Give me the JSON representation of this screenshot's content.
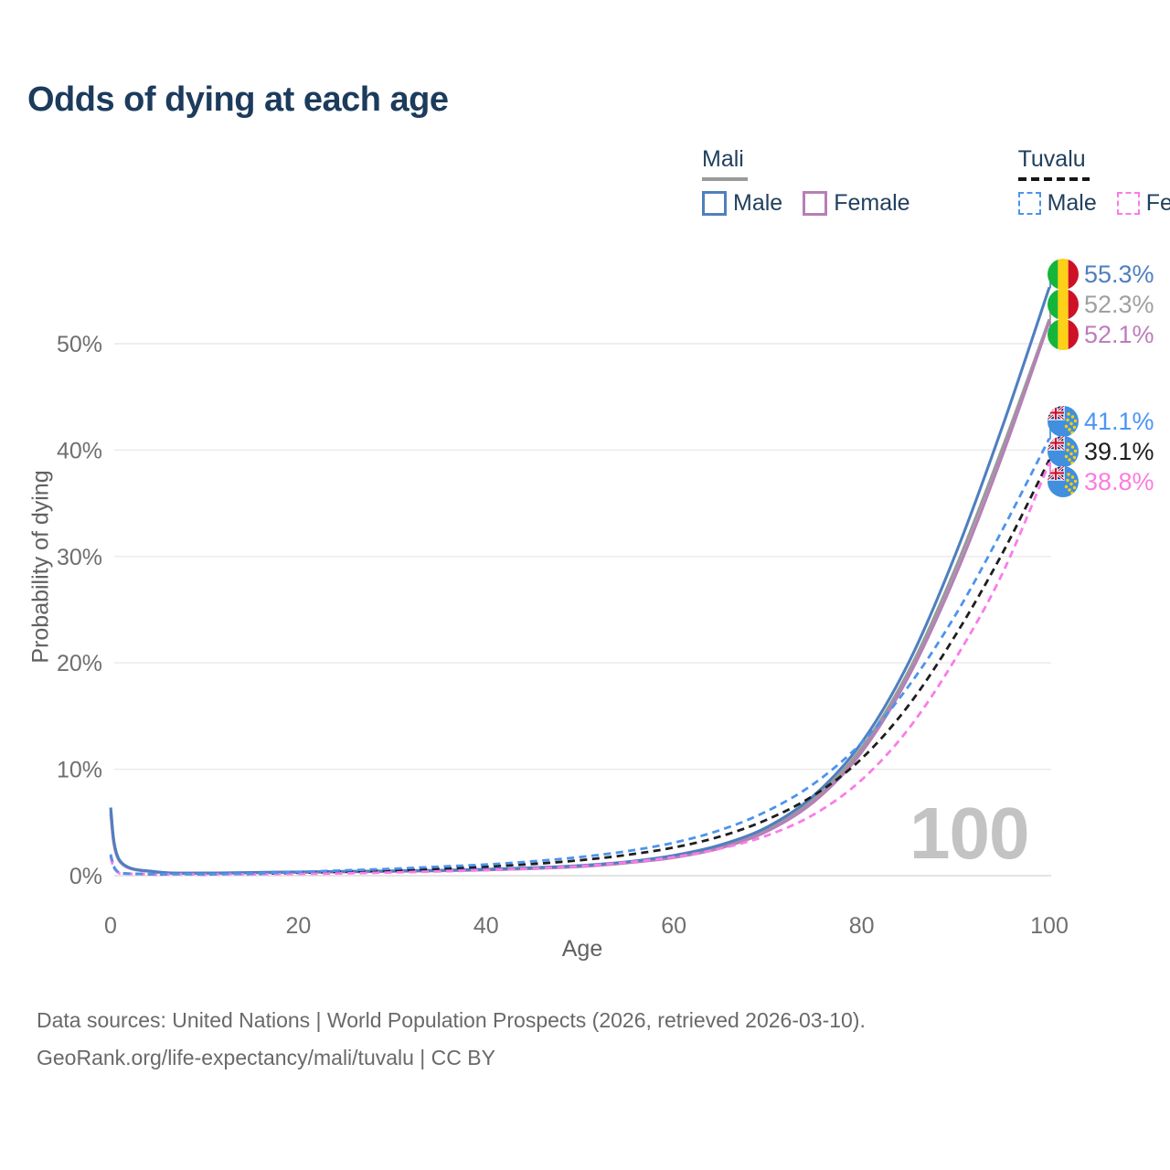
{
  "title": "Odds of dying at each age",
  "legend": {
    "groups": [
      {
        "country": "Mali",
        "line_style": "solid",
        "line_color": "#9a9a9a",
        "items": [
          {
            "label": "Male",
            "color": "#4f7fbf",
            "dash": "solid"
          },
          {
            "label": "Female",
            "color": "#b77fb7",
            "dash": "solid"
          }
        ]
      },
      {
        "country": "Tuvalu",
        "line_style": "dashed",
        "line_color": "#151515",
        "items": [
          {
            "label": "Male",
            "color": "#4d93ee",
            "dash": "dashed"
          },
          {
            "label": "Female",
            "color": "#fb7be8",
            "dash": "dashed"
          }
        ]
      }
    ]
  },
  "chart_data": {
    "type": "line",
    "title": "Odds of dying at each age",
    "xlabel": "Age",
    "ylabel": "Probability of dying",
    "unit": "%",
    "xlim": [
      0,
      100
    ],
    "ylim": [
      0,
      57.5
    ],
    "grid": "horizontal",
    "xtick_values": [
      0,
      20,
      40,
      60,
      80,
      100
    ],
    "xtick_labels": [
      "0",
      "20",
      "40",
      "60",
      "80",
      "100"
    ],
    "ytick_values": [
      0,
      10,
      20,
      30,
      40,
      50
    ],
    "ytick_labels": [
      "0%",
      "10%",
      "20%",
      "30%",
      "40%",
      "50%"
    ],
    "age_counter": "100",
    "ages": [
      0,
      1,
      5,
      10,
      15,
      20,
      25,
      30,
      35,
      40,
      45,
      50,
      55,
      60,
      65,
      70,
      75,
      80,
      85,
      90,
      95,
      100
    ],
    "series": [
      {
        "name": "Mali Male",
        "country": "Mali",
        "sex": "Male",
        "color": "#4f7fbf",
        "dash": "solid",
        "values": [
          6.4,
          1.4,
          0.35,
          0.25,
          0.3,
          0.35,
          0.4,
          0.45,
          0.5,
          0.6,
          0.75,
          0.95,
          1.3,
          1.9,
          2.9,
          4.6,
          7.6,
          12.5,
          20.0,
          30.2,
          42.2,
          55.3
        ],
        "end_label": "55.3%"
      },
      {
        "name": "Mali Total",
        "country": "Mali",
        "sex": "Both",
        "color": "#9a9a9a",
        "dash": "solid",
        "values": [
          6.1,
          1.35,
          0.33,
          0.24,
          0.28,
          0.33,
          0.38,
          0.43,
          0.48,
          0.57,
          0.7,
          0.9,
          1.25,
          1.8,
          2.75,
          4.4,
          7.3,
          12.0,
          19.2,
          28.9,
          40.2,
          52.3
        ],
        "end_label": "52.3%"
      },
      {
        "name": "Mali Female",
        "country": "Mali",
        "sex": "Female",
        "color": "#b77fb7",
        "dash": "solid",
        "values": [
          5.8,
          1.3,
          0.32,
          0.23,
          0.26,
          0.3,
          0.35,
          0.4,
          0.46,
          0.54,
          0.66,
          0.85,
          1.2,
          1.7,
          2.6,
          4.2,
          7.0,
          11.6,
          18.7,
          28.2,
          39.5,
          52.1
        ],
        "end_label": "52.1%"
      },
      {
        "name": "Tuvalu Male",
        "country": "Tuvalu",
        "sex": "Male",
        "color": "#4d93ee",
        "dash": "dashed",
        "values": [
          2.0,
          0.25,
          0.12,
          0.12,
          0.2,
          0.35,
          0.5,
          0.65,
          0.85,
          1.05,
          1.35,
          1.75,
          2.3,
          3.1,
          4.3,
          6.1,
          8.7,
          12.5,
          17.8,
          24.5,
          32.5,
          41.1
        ],
        "end_label": "41.1%"
      },
      {
        "name": "Tuvalu Total",
        "country": "Tuvalu",
        "sex": "Both",
        "color": "#1e1e1e",
        "dash": "dashed",
        "values": [
          1.9,
          0.22,
          0.1,
          0.1,
          0.16,
          0.27,
          0.38,
          0.5,
          0.66,
          0.85,
          1.1,
          1.45,
          1.95,
          2.65,
          3.7,
          5.3,
          7.6,
          11.0,
          16.0,
          22.6,
          30.3,
          39.1
        ],
        "end_label": "39.1%"
      },
      {
        "name": "Tuvalu Female",
        "country": "Tuvalu",
        "sex": "Female",
        "color": "#fb7be8",
        "dash": "dashed",
        "values": [
          1.7,
          0.2,
          0.09,
          0.09,
          0.11,
          0.16,
          0.22,
          0.3,
          0.4,
          0.52,
          0.68,
          0.9,
          1.25,
          1.75,
          2.55,
          3.8,
          5.8,
          9.0,
          13.8,
          20.4,
          28.4,
          38.8
        ],
        "end_label": "38.8%"
      }
    ],
    "end_labels": [
      {
        "text": "55.3%",
        "color": "#4f7fbf",
        "flag": "mali"
      },
      {
        "text": "52.3%",
        "color": "#a0a0a0",
        "flag": "mali"
      },
      {
        "text": "52.1%",
        "color": "#bd7cbd",
        "flag": "mali"
      },
      {
        "text": "41.1%",
        "color": "#4b96f3",
        "flag": "tuvalu"
      },
      {
        "text": "39.1%",
        "color": "#1e1e1e",
        "flag": "tuvalu"
      },
      {
        "text": "38.8%",
        "color": "#fb7ce0",
        "flag": "tuvalu"
      }
    ]
  },
  "footer": {
    "line1": "Data sources: United Nations | World Population Prospects (2026, retrieved 2026-03-10).",
    "line2": "GeoRank.org/life-expectancy/mali/tuvalu | CC BY"
  }
}
